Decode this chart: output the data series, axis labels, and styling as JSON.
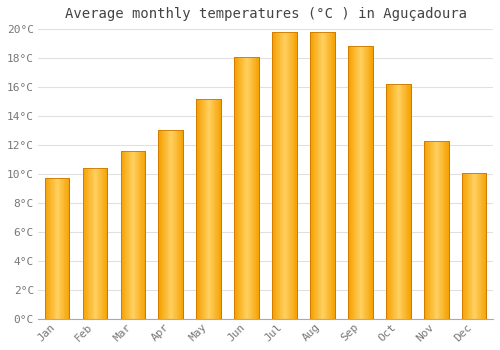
{
  "title": "Average monthly temperatures (°C ) in Aguçadoura",
  "months": [
    "Jan",
    "Feb",
    "Mar",
    "Apr",
    "May",
    "Jun",
    "Jul",
    "Aug",
    "Sep",
    "Oct",
    "Nov",
    "Dec"
  ],
  "values": [
    9.7,
    10.4,
    11.6,
    13.0,
    15.2,
    18.1,
    19.8,
    19.8,
    18.8,
    16.2,
    12.3,
    10.1
  ],
  "bar_color_bottom": "#F5A623",
  "bar_color_mid": "#FFD060",
  "bar_color_top": "#FFA500",
  "bar_edge_color": "#CC7700",
  "background_color": "#FFFFFF",
  "plot_bg_color": "#FFFFFF",
  "grid_color": "#E0E0E0",
  "ylim": [
    0,
    20
  ],
  "ytick_step": 2,
  "title_fontsize": 10,
  "tick_fontsize": 8,
  "tick_color": "#777777",
  "title_color": "#444444"
}
